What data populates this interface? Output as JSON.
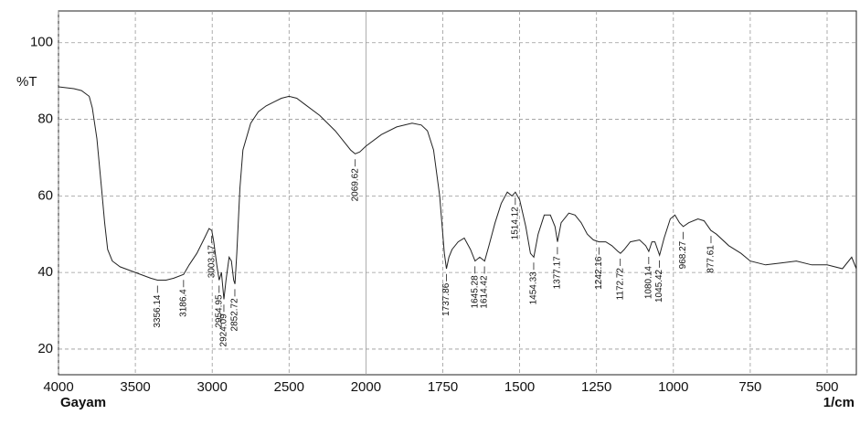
{
  "chart_data": {
    "type": "line",
    "y_label": "%T",
    "x_label": "1/cm",
    "sample": "Gayam",
    "x": [
      4000,
      3900,
      3850,
      3800,
      3780,
      3750,
      3720,
      3700,
      3680,
      3650,
      3600,
      3500,
      3400,
      3356,
      3300,
      3250,
      3186,
      3150,
      3100,
      3050,
      3020,
      3003,
      2990,
      2970,
      2955,
      2940,
      2924,
      2910,
      2890,
      2875,
      2860,
      2852,
      2840,
      2820,
      2800,
      2750,
      2700,
      2650,
      2600,
      2550,
      2500,
      2450,
      2400,
      2300,
      2200,
      2100,
      2070,
      2040,
      2000,
      1950,
      1900,
      1850,
      1820,
      1800,
      1780,
      1760,
      1745,
      1738,
      1730,
      1720,
      1700,
      1680,
      1660,
      1645,
      1630,
      1614,
      1600,
      1580,
      1560,
      1540,
      1525,
      1514,
      1500,
      1480,
      1465,
      1454,
      1440,
      1420,
      1400,
      1385,
      1377,
      1365,
      1340,
      1320,
      1300,
      1280,
      1260,
      1242,
      1220,
      1200,
      1180,
      1172,
      1160,
      1140,
      1110,
      1090,
      1080,
      1070,
      1060,
      1045,
      1030,
      1010,
      995,
      980,
      968,
      950,
      920,
      900,
      878,
      860,
      820,
      780,
      750,
      700,
      650,
      600,
      550,
      500,
      450,
      420,
      405
    ],
    "series": [
      {
        "color": "#222222",
        "values": [
          88.5,
          88,
          87.5,
          86,
          83,
          75,
          62,
          53,
          46,
          43,
          41.5,
          40,
          38.5,
          38,
          38,
          38.5,
          39.5,
          42,
          45,
          49,
          51.5,
          51,
          48,
          42,
          38,
          40,
          33,
          38,
          44,
          43,
          38,
          37,
          45,
          62,
          72,
          79,
          82,
          83.5,
          84.5,
          85.5,
          86,
          85.5,
          84,
          81,
          77,
          72,
          71,
          71.5,
          73,
          76,
          78,
          79,
          78.5,
          77,
          72,
          60,
          45,
          41,
          44,
          46,
          48,
          49,
          46,
          43,
          44,
          43,
          47,
          53,
          58,
          61,
          60,
          61,
          59,
          52,
          45,
          44,
          50,
          55,
          55,
          52,
          48,
          53,
          55.5,
          55,
          53,
          50,
          48.5,
          48,
          48,
          47,
          45.5,
          45,
          46,
          48,
          48.5,
          47,
          45.5,
          48,
          48,
          44.5,
          49,
          54,
          55,
          53,
          52,
          53,
          54,
          53.5,
          51,
          50,
          47,
          45,
          43,
          42,
          42.5,
          43,
          42,
          42,
          41,
          44,
          41
        ]
      }
    ],
    "peaks": [
      3356.14,
      3186.4,
      3003.17,
      2954.95,
      2924.09,
      2852.72,
      2069.62,
      1737.86,
      1645.28,
      1614.42,
      1514.12,
      1454.33,
      1377.17,
      1242.16,
      1172.72,
      1080.14,
      1045.42,
      968.27,
      877.61
    ],
    "xlim": [
      4000,
      400
    ],
    "xticks": [
      4000,
      3500,
      3000,
      2500,
      2000,
      1750,
      1500,
      1250,
      1000,
      750,
      500
    ],
    "ylim": [
      13.3,
      108.3
    ],
    "yticks": [
      20,
      40,
      60,
      80,
      100
    ],
    "grid": true
  }
}
